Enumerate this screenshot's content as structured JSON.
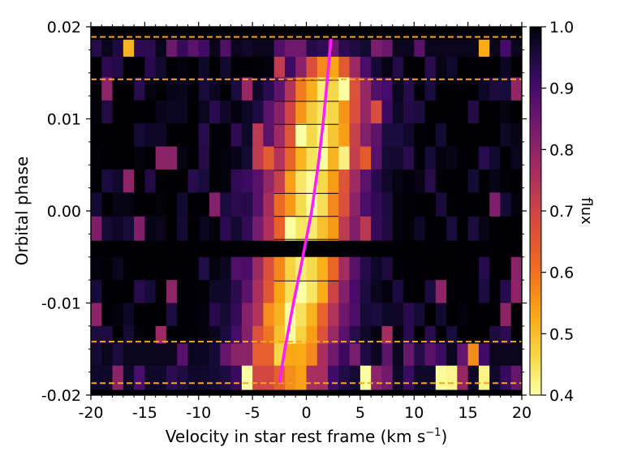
{
  "chart_data": {
    "type": "heatmap",
    "title": "",
    "xlabel": "Velocity in star rest frame (km s",
    "xlabel_sup": "−1",
    "xlabel_close": ")",
    "ylabel": "Orbital phase",
    "xlim": [
      -20,
      20
    ],
    "ylim": [
      -0.02,
      0.02
    ],
    "x_ticks": [
      -20,
      -15,
      -10,
      -5,
      0,
      5,
      10,
      15,
      20
    ],
    "x_tick_labels": [
      "-20",
      "-15",
      "-10",
      "-5",
      "0",
      "5",
      "10",
      "15",
      "20"
    ],
    "y_ticks": [
      -0.02,
      -0.01,
      0.0,
      0.01,
      0.02
    ],
    "y_tick_labels": [
      "-0.02",
      "-0.01",
      "0.00",
      "0.01",
      "0.02"
    ],
    "colorbar": {
      "label": "flux",
      "range": [
        0.4,
        1.0
      ],
      "ticks": [
        0.4,
        0.5,
        0.6,
        0.7,
        0.8,
        0.9,
        1.0
      ],
      "tick_labels": [
        "0.4",
        "0.5",
        "0.6",
        "0.7",
        "0.8",
        "0.9",
        "1.0"
      ],
      "colormap": "inferno-reversed"
    },
    "velocity_bins": {
      "start": -20,
      "end": 20,
      "count": 40
    },
    "rows": [
      {
        "phase": 0.0173,
        "height": 0.0026,
        "base": 0.98,
        "line_center": 2.3,
        "line_depth": 0.06,
        "line_width": 2.0,
        "noise": 0.18
      },
      {
        "phase": 0.0155,
        "height": 0.0025,
        "base": 1.0,
        "line_center": 2.1,
        "line_depth": 0.45,
        "line_width": 2.0,
        "noise": 0.1
      },
      {
        "phase": 0.0132,
        "height": 0.0026,
        "base": 1.0,
        "line_center": 1.9,
        "line_depth": 0.55,
        "line_width": 2.6,
        "noise": 0.08
      },
      {
        "phase": 0.0107,
        "height": 0.0026,
        "base": 1.0,
        "line_center": 1.6,
        "line_depth": 0.56,
        "line_width": 2.8,
        "noise": 0.08
      },
      {
        "phase": 0.0082,
        "height": 0.0026,
        "base": 1.0,
        "line_center": 1.3,
        "line_depth": 0.56,
        "line_width": 2.8,
        "noise": 0.08
      },
      {
        "phase": 0.0057,
        "height": 0.0026,
        "base": 1.0,
        "line_center": 1.0,
        "line_depth": 0.56,
        "line_width": 2.8,
        "noise": 0.08
      },
      {
        "phase": 0.0032,
        "height": 0.0026,
        "base": 1.0,
        "line_center": 0.7,
        "line_depth": 0.56,
        "line_width": 2.8,
        "noise": 0.08
      },
      {
        "phase": 0.0007,
        "height": 0.0026,
        "base": 1.0,
        "line_center": 0.4,
        "line_depth": 0.57,
        "line_width": 2.8,
        "noise": 0.07
      },
      {
        "phase": -0.0019,
        "height": 0.0026,
        "base": 1.0,
        "line_center": 0.1,
        "line_depth": 0.57,
        "line_width": 2.8,
        "noise": 0.07
      },
      {
        "phase": -0.0063,
        "height": 0.0026,
        "base": 1.0,
        "line_center": -0.4,
        "line_depth": 0.57,
        "line_width": 2.8,
        "noise": 0.08
      },
      {
        "phase": -0.0088,
        "height": 0.0026,
        "base": 1.0,
        "line_center": -0.7,
        "line_depth": 0.57,
        "line_width": 2.8,
        "noise": 0.08
      },
      {
        "phase": -0.0113,
        "height": 0.0026,
        "base": 1.0,
        "line_center": -1.0,
        "line_depth": 0.56,
        "line_width": 2.8,
        "noise": 0.08
      },
      {
        "phase": -0.0138,
        "height": 0.0026,
        "base": 1.0,
        "line_center": -1.3,
        "line_depth": 0.55,
        "line_width": 2.8,
        "noise": 0.09
      },
      {
        "phase": -0.0157,
        "height": 0.0026,
        "base": 0.98,
        "line_center": -1.6,
        "line_depth": 0.45,
        "line_width": 2.6,
        "noise": 0.16
      },
      {
        "phase": -0.0181,
        "height": 0.0026,
        "base": 0.97,
        "line_center": -1.9,
        "line_depth": 0.35,
        "line_width": 2.4,
        "noise": 0.22
      }
    ],
    "separator_phases": [
      0.0142,
      0.0119,
      0.0094,
      0.0069,
      0.0044,
      0.0019,
      -0.0006,
      -0.0031,
      -0.0076
    ],
    "dashed_lines": [
      0.0189,
      0.0143,
      -0.0142,
      -0.0187
    ],
    "dashed_color": "#f5a623",
    "track": {
      "x": [
        -2.5,
        -2.0,
        -1.2,
        -0.5,
        0.0,
        0.5,
        1.1,
        1.6,
        2.0,
        2.3
      ],
      "y": [
        -0.0187,
        -0.015,
        -0.01,
        -0.006,
        -0.003,
        0.0,
        0.005,
        0.01,
        0.015,
        0.0187
      ],
      "color": "#ff1aff"
    }
  }
}
